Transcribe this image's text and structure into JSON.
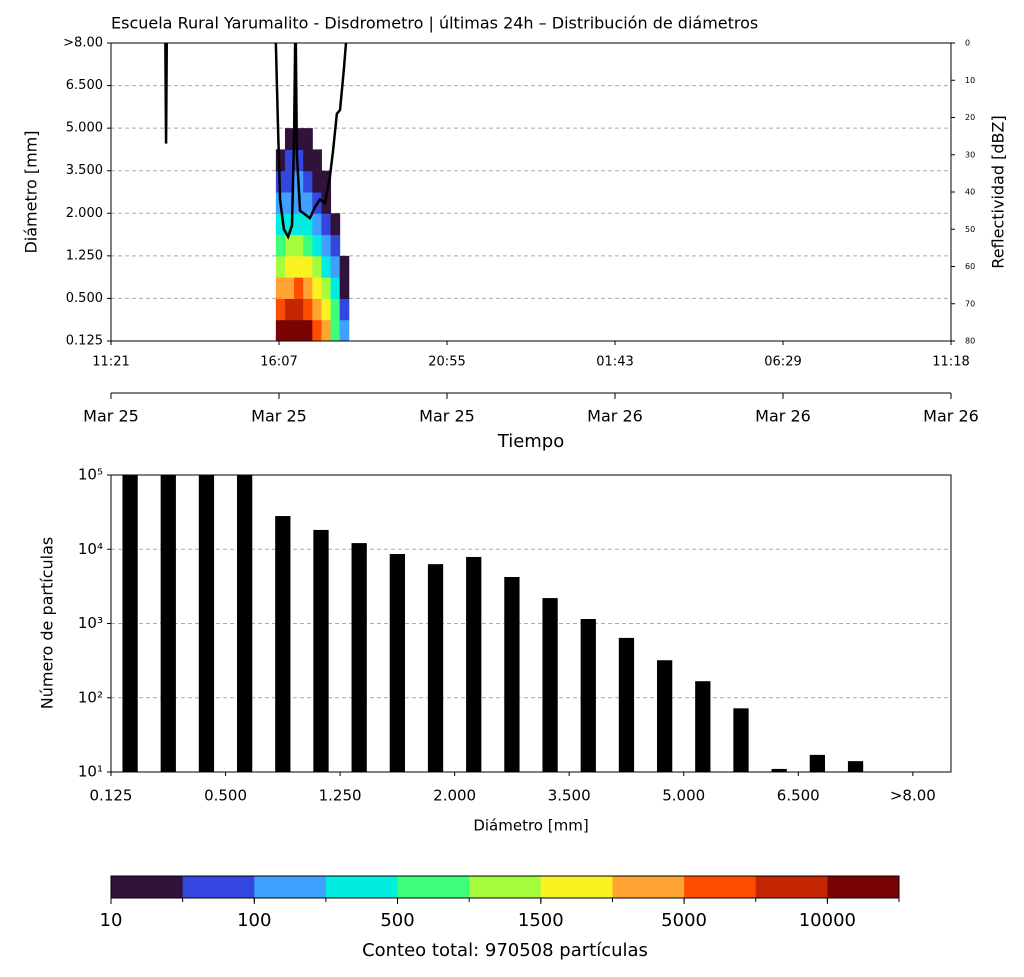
{
  "chart_data": [
    {
      "type": "heatmap",
      "title": "Escuela Rural Yarumalito - Disdrometro | últimas 24h – Distribución de diámetros",
      "ylabel": "Diámetro [mm]",
      "y2label": "Reflectividad [dBZ]",
      "xlabel": "Tiempo",
      "xlim": [
        0,
        23.95
      ],
      "xticks": [
        {
          "value": 0,
          "label": "11:21"
        },
        {
          "value": 4.79,
          "label": "16:07"
        },
        {
          "value": 9.58,
          "label": "20:55"
        },
        {
          "value": 14.37,
          "label": "01:43"
        },
        {
          "value": 19.16,
          "label": "06:29"
        },
        {
          "value": 23.95,
          "label": "11:18"
        }
      ],
      "xticks2": [
        {
          "value": 0,
          "label": "Mar 25"
        },
        {
          "value": 4.79,
          "label": "Mar 25"
        },
        {
          "value": 9.58,
          "label": "Mar 25"
        },
        {
          "value": 14.37,
          "label": "Mar 26"
        },
        {
          "value": 19.16,
          "label": "Mar 26"
        },
        {
          "value": 23.95,
          "label": "Mar 26"
        }
      ],
      "ylim": [
        0,
        7
      ],
      "yticks": [
        {
          "value": 0,
          "label": "0.125"
        },
        {
          "value": 1,
          "label": "0.500"
        },
        {
          "value": 2,
          "label": "1.250"
        },
        {
          "value": 3,
          "label": "2.000"
        },
        {
          "value": 4,
          "label": "3.500"
        },
        {
          "value": 5,
          "label": "5.000"
        },
        {
          "value": 6,
          "label": "6.500"
        },
        {
          "value": 7,
          "label": ">8.00"
        }
      ],
      "y2lim": [
        80,
        0
      ],
      "y2ticks": [
        0,
        10,
        20,
        30,
        40,
        50,
        60,
        70,
        80
      ],
      "grid": true,
      "x_edges": [
        4.7,
        4.96,
        5.22,
        5.48,
        5.74,
        6.0,
        6.26,
        6.52,
        6.78
      ],
      "y_edges": [
        0,
        0.5,
        1,
        1.5,
        2,
        2.5,
        3,
        3.5,
        4,
        4.5,
        5
      ],
      "z": [
        [
          12000,
          6000,
          3000,
          1200,
          600,
          300,
          150,
          60,
          20,
          null
        ],
        [
          15000,
          8000,
          4000,
          1800,
          900,
          400,
          200,
          90,
          40,
          15
        ],
        [
          14000,
          9000,
          5000,
          2000,
          1000,
          450,
          200,
          100,
          40,
          20
        ],
        [
          11000,
          6000,
          3000,
          1500,
          700,
          300,
          150,
          60,
          25,
          12
        ],
        [
          7000,
          4000,
          2000,
          900,
          400,
          200,
          80,
          30,
          12,
          null
        ],
        [
          3000,
          1800,
          900,
          400,
          180,
          80,
          30,
          12,
          null,
          null
        ],
        [
          800,
          500,
          250,
          100,
          40,
          15,
          null,
          null,
          null,
          null
        ],
        [
          120,
          60,
          30,
          12,
          null,
          null,
          null,
          null,
          null,
          null
        ]
      ],
      "series": [
        {
          "color": "#000000",
          "axis": "y2",
          "x": [
            1.55,
            1.57,
            1.59,
            null,
            4.7,
            4.76,
            4.82,
            4.93,
            5.05,
            5.16,
            5.22,
            5.25,
            5.27,
            5.3,
            5.39,
            5.53,
            5.67,
            5.82,
            5.96,
            6.1,
            6.24,
            6.33,
            6.44,
            6.53,
            6.59,
            6.64,
            6.7
          ],
          "values": [
            0,
            27,
            0,
            null,
            0,
            22,
            42,
            50,
            52,
            49,
            25,
            0,
            0,
            30,
            45,
            46,
            47,
            44,
            42,
            43,
            36,
            29,
            19,
            18,
            12,
            7,
            0
          ]
        }
      ]
    },
    {
      "type": "bar",
      "xlabel": "Diámetro [mm]",
      "ylabel": "Número de partículas",
      "x": [
        0,
        1,
        2,
        3,
        4,
        5,
        6,
        7,
        8,
        9,
        10,
        11,
        12,
        13,
        14,
        15,
        16,
        17,
        18,
        19,
        20,
        21
      ],
      "values": [
        100000,
        100000,
        100000,
        100000,
        28000,
        18200,
        12100,
        8630,
        6300,
        7870,
        4230,
        2200,
        1150,
        640,
        320,
        167,
        72,
        11,
        17,
        14,
        null,
        null
      ],
      "color": "#000000",
      "xlim": [
        -0.5,
        21.5
      ],
      "xticks": [
        {
          "value": -0.5,
          "label": "0.125"
        },
        {
          "value": 2.5,
          "label": "0.500"
        },
        {
          "value": 5.5,
          "label": "1.250"
        },
        {
          "value": 8.5,
          "label": "2.000"
        },
        {
          "value": 11.5,
          "label": "3.500"
        },
        {
          "value": 14.5,
          "label": "5.000"
        },
        {
          "value": 17.5,
          "label": "6.500"
        },
        {
          "value": 20.5,
          "label": ">8.00"
        }
      ],
      "ylim": [
        10,
        100000
      ],
      "log_y": true,
      "yticks": [
        {
          "value": 10,
          "label": "10¹"
        },
        {
          "value": 100,
          "label": "10²"
        },
        {
          "value": 1000,
          "label": "10³"
        },
        {
          "value": 10000,
          "label": "10⁴"
        },
        {
          "value": 100000,
          "label": "10⁵"
        }
      ],
      "grid": true
    },
    {
      "type": "colorbar",
      "label": "Conteo total: 970508 partículas",
      "ticks": [
        10,
        100,
        500,
        1500,
        5000,
        10000
      ],
      "colors": [
        "#30123b",
        "#3346e0",
        "#3fa0ff",
        "#00ede0",
        "#3dff7a",
        "#a4fc3c",
        "#faf220",
        "#ffa432",
        "#ff4d00",
        "#c42503",
        "#7a0403"
      ]
    }
  ]
}
